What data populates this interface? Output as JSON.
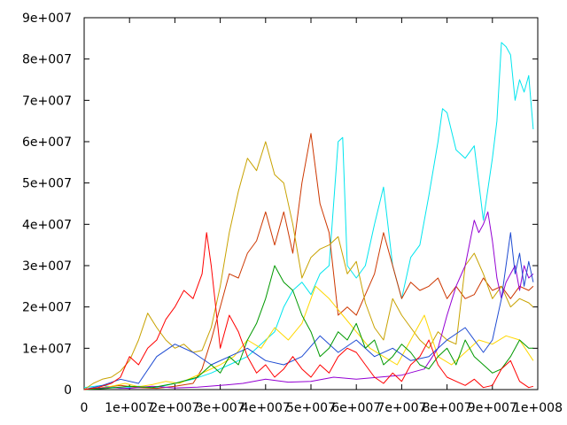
{
  "chart_data": {
    "type": "line",
    "xlim": [
      0,
      100000000
    ],
    "ylim": [
      0,
      90000000
    ],
    "x_ticks": [
      {
        "value": 0,
        "label": "0"
      },
      {
        "value": 10000000,
        "label": "1e+007"
      },
      {
        "value": 20000000,
        "label": "2e+007"
      },
      {
        "value": 30000000,
        "label": "3e+007"
      },
      {
        "value": 40000000,
        "label": "4e+007"
      },
      {
        "value": 50000000,
        "label": "5e+007"
      },
      {
        "value": 60000000,
        "label": "6e+007"
      },
      {
        "value": 70000000,
        "label": "7e+007"
      },
      {
        "value": 80000000,
        "label": "8e+007"
      },
      {
        "value": 90000000,
        "label": "9e+007"
      },
      {
        "value": 100000000,
        "label": "1e+008"
      }
    ],
    "y_ticks": [
      {
        "value": 0,
        "label": "0"
      },
      {
        "value": 10000000,
        "label": "1e+007"
      },
      {
        "value": 20000000,
        "label": "2e+007"
      },
      {
        "value": 30000000,
        "label": "3e+007"
      },
      {
        "value": 40000000,
        "label": "4e+007"
      },
      {
        "value": 50000000,
        "label": "5e+007"
      },
      {
        "value": 60000000,
        "label": "6e+007"
      },
      {
        "value": 70000000,
        "label": "7e+007"
      },
      {
        "value": 80000000,
        "label": "8e+007"
      },
      {
        "value": 90000000,
        "label": "9e+007"
      }
    ],
    "grid": false,
    "legend": "none",
    "series": [
      {
        "color": "#00e5ee",
        "x": [
          0,
          4000000,
          8000000,
          12000000,
          16000000,
          20000000,
          24000000,
          28000000,
          32000000,
          36000000,
          40000000,
          42000000,
          44000000,
          46000000,
          48000000,
          50000000,
          52000000,
          54000000,
          56000000,
          57000000,
          58000000,
          60000000,
          62000000,
          64000000,
          66000000,
          68000000,
          70000000,
          72000000,
          74000000,
          76000000,
          78000000,
          79000000,
          80000000,
          82000000,
          84000000,
          86000000,
          88000000,
          90000000,
          91000000,
          92000000,
          93000000,
          94000000,
          95000000,
          96000000,
          97000000,
          98000000,
          99000000
        ],
        "values": [
          500000,
          1000000,
          300000,
          800000,
          500000,
          1500000,
          2500000,
          4000000,
          6000000,
          8000000,
          12000000,
          14000000,
          20000000,
          24000000,
          26000000,
          23000000,
          28000000,
          30000000,
          60000000,
          61000000,
          30000000,
          27000000,
          30000000,
          40000000,
          49000000,
          30000000,
          22000000,
          32000000,
          35000000,
          47000000,
          60000000,
          68000000,
          67000000,
          58000000,
          56000000,
          59000000,
          41000000,
          56000000,
          65000000,
          84000000,
          83000000,
          81000000,
          70000000,
          75000000,
          72000000,
          76000000,
          63000000
        ]
      },
      {
        "color": "#cd3700",
        "x": [
          0,
          4000000,
          8000000,
          12000000,
          16000000,
          20000000,
          24000000,
          26000000,
          28000000,
          30000000,
          32000000,
          34000000,
          36000000,
          38000000,
          40000000,
          42000000,
          44000000,
          46000000,
          48000000,
          50000000,
          52000000,
          54000000,
          56000000,
          58000000,
          60000000,
          62000000,
          64000000,
          66000000,
          68000000,
          70000000,
          72000000,
          74000000,
          76000000,
          78000000,
          80000000,
          82000000,
          84000000,
          86000000,
          88000000,
          90000000,
          92000000,
          94000000,
          96000000,
          98000000,
          99000000
        ],
        "values": [
          0,
          500000,
          1000000,
          500000,
          300000,
          800000,
          1500000,
          5000000,
          12000000,
          20000000,
          28000000,
          27000000,
          33000000,
          36000000,
          43000000,
          35000000,
          43000000,
          33000000,
          50000000,
          62000000,
          45000000,
          38000000,
          18000000,
          20000000,
          18000000,
          23000000,
          28000000,
          38000000,
          30000000,
          22000000,
          26000000,
          24000000,
          25000000,
          27000000,
          22000000,
          25000000,
          22000000,
          23000000,
          27000000,
          24000000,
          25000000,
          22000000,
          25000000,
          24000000,
          25000000
        ]
      },
      {
        "color": "#c8a200",
        "x": [
          0,
          2000000,
          4000000,
          6000000,
          8000000,
          10000000,
          12000000,
          14000000,
          16000000,
          18000000,
          20000000,
          22000000,
          24000000,
          26000000,
          28000000,
          30000000,
          32000000,
          34000000,
          36000000,
          38000000,
          40000000,
          42000000,
          44000000,
          46000000,
          48000000,
          50000000,
          52000000,
          54000000,
          56000000,
          58000000,
          60000000,
          62000000,
          64000000,
          66000000,
          68000000,
          70000000,
          72000000,
          74000000,
          76000000,
          78000000,
          80000000,
          82000000,
          84000000,
          86000000,
          88000000,
          90000000,
          92000000,
          94000000,
          96000000,
          98000000,
          99000000
        ],
        "values": [
          0,
          1500000,
          2500000,
          3000000,
          4500000,
          7000000,
          12000000,
          18500000,
          15000000,
          12000000,
          10000000,
          11000000,
          9000000,
          9500000,
          15000000,
          25000000,
          38000000,
          48000000,
          56000000,
          53000000,
          60000000,
          52000000,
          50000000,
          40000000,
          27000000,
          32000000,
          34000000,
          35000000,
          37000000,
          28000000,
          31000000,
          21000000,
          15000000,
          12000000,
          22000000,
          18000000,
          15000000,
          12000000,
          10000000,
          14000000,
          12000000,
          11000000,
          30000000,
          33000000,
          28000000,
          22000000,
          25000000,
          20000000,
          22000000,
          21000000,
          20000000
        ]
      },
      {
        "color": "#ffd700",
        "x": [
          0,
          3000000,
          6000000,
          9000000,
          12000000,
          15000000,
          18000000,
          21000000,
          24000000,
          27000000,
          30000000,
          33000000,
          36000000,
          39000000,
          42000000,
          45000000,
          48000000,
          51000000,
          54000000,
          57000000,
          60000000,
          63000000,
          66000000,
          69000000,
          72000000,
          75000000,
          78000000,
          81000000,
          84000000,
          87000000,
          90000000,
          93000000,
          96000000,
          99000000
        ],
        "values": [
          0,
          300000,
          800000,
          1500000,
          700000,
          1200000,
          2000000,
          1500000,
          3000000,
          4500000,
          6000000,
          8000000,
          12000000,
          10000000,
          15000000,
          12000000,
          16000000,
          25000000,
          22000000,
          18000000,
          14000000,
          10000000,
          8000000,
          6000000,
          12000000,
          18000000,
          8000000,
          6000000,
          9000000,
          12000000,
          11000000,
          13000000,
          12000000,
          7000000
        ]
      },
      {
        "color": "#9400d3",
        "x": [
          0,
          5000000,
          10000000,
          15000000,
          20000000,
          25000000,
          30000000,
          35000000,
          40000000,
          45000000,
          50000000,
          55000000,
          60000000,
          65000000,
          70000000,
          75000000,
          78000000,
          80000000,
          82000000,
          84000000,
          86000000,
          87000000,
          88000000,
          89000000,
          90000000,
          91000000,
          92000000,
          93000000,
          94000000,
          95000000,
          96000000,
          97000000,
          98000000,
          99000000
        ],
        "values": [
          0,
          500000,
          300000,
          800000,
          400000,
          600000,
          1000000,
          1500000,
          2500000,
          1800000,
          2000000,
          3000000,
          2500000,
          3000000,
          3500000,
          5000000,
          10000000,
          18000000,
          25000000,
          30000000,
          41000000,
          38000000,
          40000000,
          43000000,
          36000000,
          27000000,
          22000000,
          26000000,
          28000000,
          30000000,
          24000000,
          30000000,
          27000000,
          28000000
        ]
      },
      {
        "color": "#1e4bd2",
        "x": [
          0,
          4000000,
          8000000,
          12000000,
          16000000,
          20000000,
          24000000,
          28000000,
          32000000,
          36000000,
          40000000,
          44000000,
          48000000,
          52000000,
          56000000,
          60000000,
          64000000,
          68000000,
          72000000,
          76000000,
          80000000,
          84000000,
          88000000,
          90000000,
          92000000,
          94000000,
          95000000,
          96000000,
          97000000,
          98000000,
          99000000
        ],
        "values": [
          0,
          1000000,
          2500000,
          1500000,
          8000000,
          11000000,
          9000000,
          6000000,
          8000000,
          10000000,
          7000000,
          6000000,
          8000000,
          13000000,
          9000000,
          12000000,
          8000000,
          10000000,
          7000000,
          8000000,
          12000000,
          15000000,
          9000000,
          12000000,
          22000000,
          38000000,
          28000000,
          33000000,
          25000000,
          31000000,
          26000000
        ]
      },
      {
        "color": "#009900",
        "x": [
          0,
          5000000,
          10000000,
          15000000,
          20000000,
          25000000,
          28000000,
          30000000,
          32000000,
          34000000,
          36000000,
          38000000,
          40000000,
          42000000,
          44000000,
          46000000,
          48000000,
          50000000,
          52000000,
          54000000,
          56000000,
          58000000,
          60000000,
          62000000,
          64000000,
          66000000,
          68000000,
          70000000,
          72000000,
          74000000,
          76000000,
          78000000,
          80000000,
          82000000,
          84000000,
          86000000,
          88000000,
          90000000,
          92000000,
          94000000,
          96000000,
          98000000,
          99000000
        ],
        "values": [
          0,
          300000,
          800000,
          500000,
          1500000,
          3000000,
          6000000,
          4000000,
          8000000,
          6000000,
          12000000,
          16000000,
          22000000,
          30000000,
          26000000,
          24000000,
          18000000,
          14000000,
          8000000,
          10000000,
          14000000,
          12000000,
          16000000,
          10000000,
          12000000,
          6000000,
          8000000,
          11000000,
          9000000,
          6000000,
          5000000,
          8000000,
          10000000,
          6000000,
          12000000,
          8000000,
          6000000,
          4000000,
          5000000,
          8000000,
          12000000,
          10000000,
          10000000
        ]
      },
      {
        "color": "#ff0000",
        "x": [
          0,
          3000000,
          6000000,
          8000000,
          10000000,
          12000000,
          14000000,
          16000000,
          18000000,
          20000000,
          22000000,
          24000000,
          26000000,
          27000000,
          28000000,
          30000000,
          32000000,
          34000000,
          36000000,
          38000000,
          40000000,
          42000000,
          44000000,
          46000000,
          48000000,
          50000000,
          52000000,
          54000000,
          56000000,
          58000000,
          60000000,
          62000000,
          64000000,
          66000000,
          68000000,
          70000000,
          72000000,
          74000000,
          76000000,
          78000000,
          80000000,
          82000000,
          84000000,
          86000000,
          88000000,
          90000000,
          92000000,
          94000000,
          96000000,
          98000000,
          99000000
        ],
        "values": [
          0,
          500000,
          1500000,
          3000000,
          8000000,
          6000000,
          10000000,
          12000000,
          17000000,
          20000000,
          24000000,
          22000000,
          28000000,
          38000000,
          30000000,
          10000000,
          18000000,
          14000000,
          8000000,
          4000000,
          6000000,
          3000000,
          5000000,
          8000000,
          5000000,
          3000000,
          6000000,
          4000000,
          8000000,
          10000000,
          9000000,
          6000000,
          3000000,
          1500000,
          4000000,
          2000000,
          6000000,
          8000000,
          12000000,
          6000000,
          3000000,
          2000000,
          1000000,
          2500000,
          500000,
          1000000,
          5000000,
          7000000,
          2000000,
          500000,
          800000
        ]
      }
    ]
  }
}
